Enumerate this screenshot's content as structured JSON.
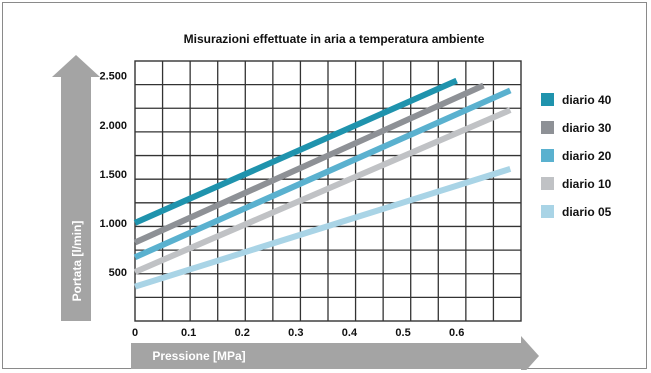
{
  "chart_data": {
    "type": "line",
    "title": "Misurazioni effettuate in aria a temperatura ambiente",
    "xlabel": "Pressione [MPa]",
    "ylabel": "Portata [l/min]",
    "x_ticks": [
      "0",
      "0.1",
      "0.2",
      "0.3",
      "0.4",
      "0.5",
      "0.6"
    ],
    "y_ticks": [
      "500",
      "1.000",
      "1.500",
      "2.000",
      "2.500"
    ],
    "xlim": [
      0,
      0.72
    ],
    "ylim": [
      0,
      2650
    ],
    "grid": true,
    "legend_position": "right",
    "series": [
      {
        "name": "diario 40",
        "color": "#1f93ad",
        "x": [
          0,
          0.6
        ],
        "y": [
          1000,
          2450
        ]
      },
      {
        "name": "diario 30",
        "color": "#8e9196",
        "x": [
          0,
          0.65
        ],
        "y": [
          800,
          2400
        ]
      },
      {
        "name": "diario 20",
        "color": "#5ab1cf",
        "x": [
          0,
          0.7
        ],
        "y": [
          650,
          2350
        ]
      },
      {
        "name": "diario 10",
        "color": "#c0c2c5",
        "x": [
          0,
          0.7
        ],
        "y": [
          500,
          2150
        ]
      },
      {
        "name": "diario 05",
        "color": "#a9d4e6",
        "x": [
          0,
          0.7
        ],
        "y": [
          350,
          1550
        ]
      }
    ]
  }
}
